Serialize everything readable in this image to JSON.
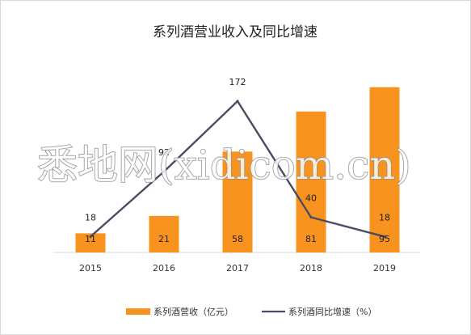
{
  "chart_data": {
    "type": "bar",
    "title": "系列酒营业收入及同比增速",
    "categories": [
      "2015",
      "2016",
      "2017",
      "2018",
      "2019"
    ],
    "series": [
      {
        "name": "系列酒营收（亿元）",
        "type": "bar",
        "values": [
          11,
          21,
          58,
          81,
          95
        ],
        "color": "#f7931e"
      },
      {
        "name": "系列酒同比增速（%）",
        "type": "line",
        "values": [
          18,
          92,
          172,
          40,
          18
        ],
        "color": "#4b4b63"
      }
    ],
    "legend_position": "bottom",
    "grid": false
  },
  "watermark": {
    "text": "悉地网(xidicom.cn)"
  }
}
